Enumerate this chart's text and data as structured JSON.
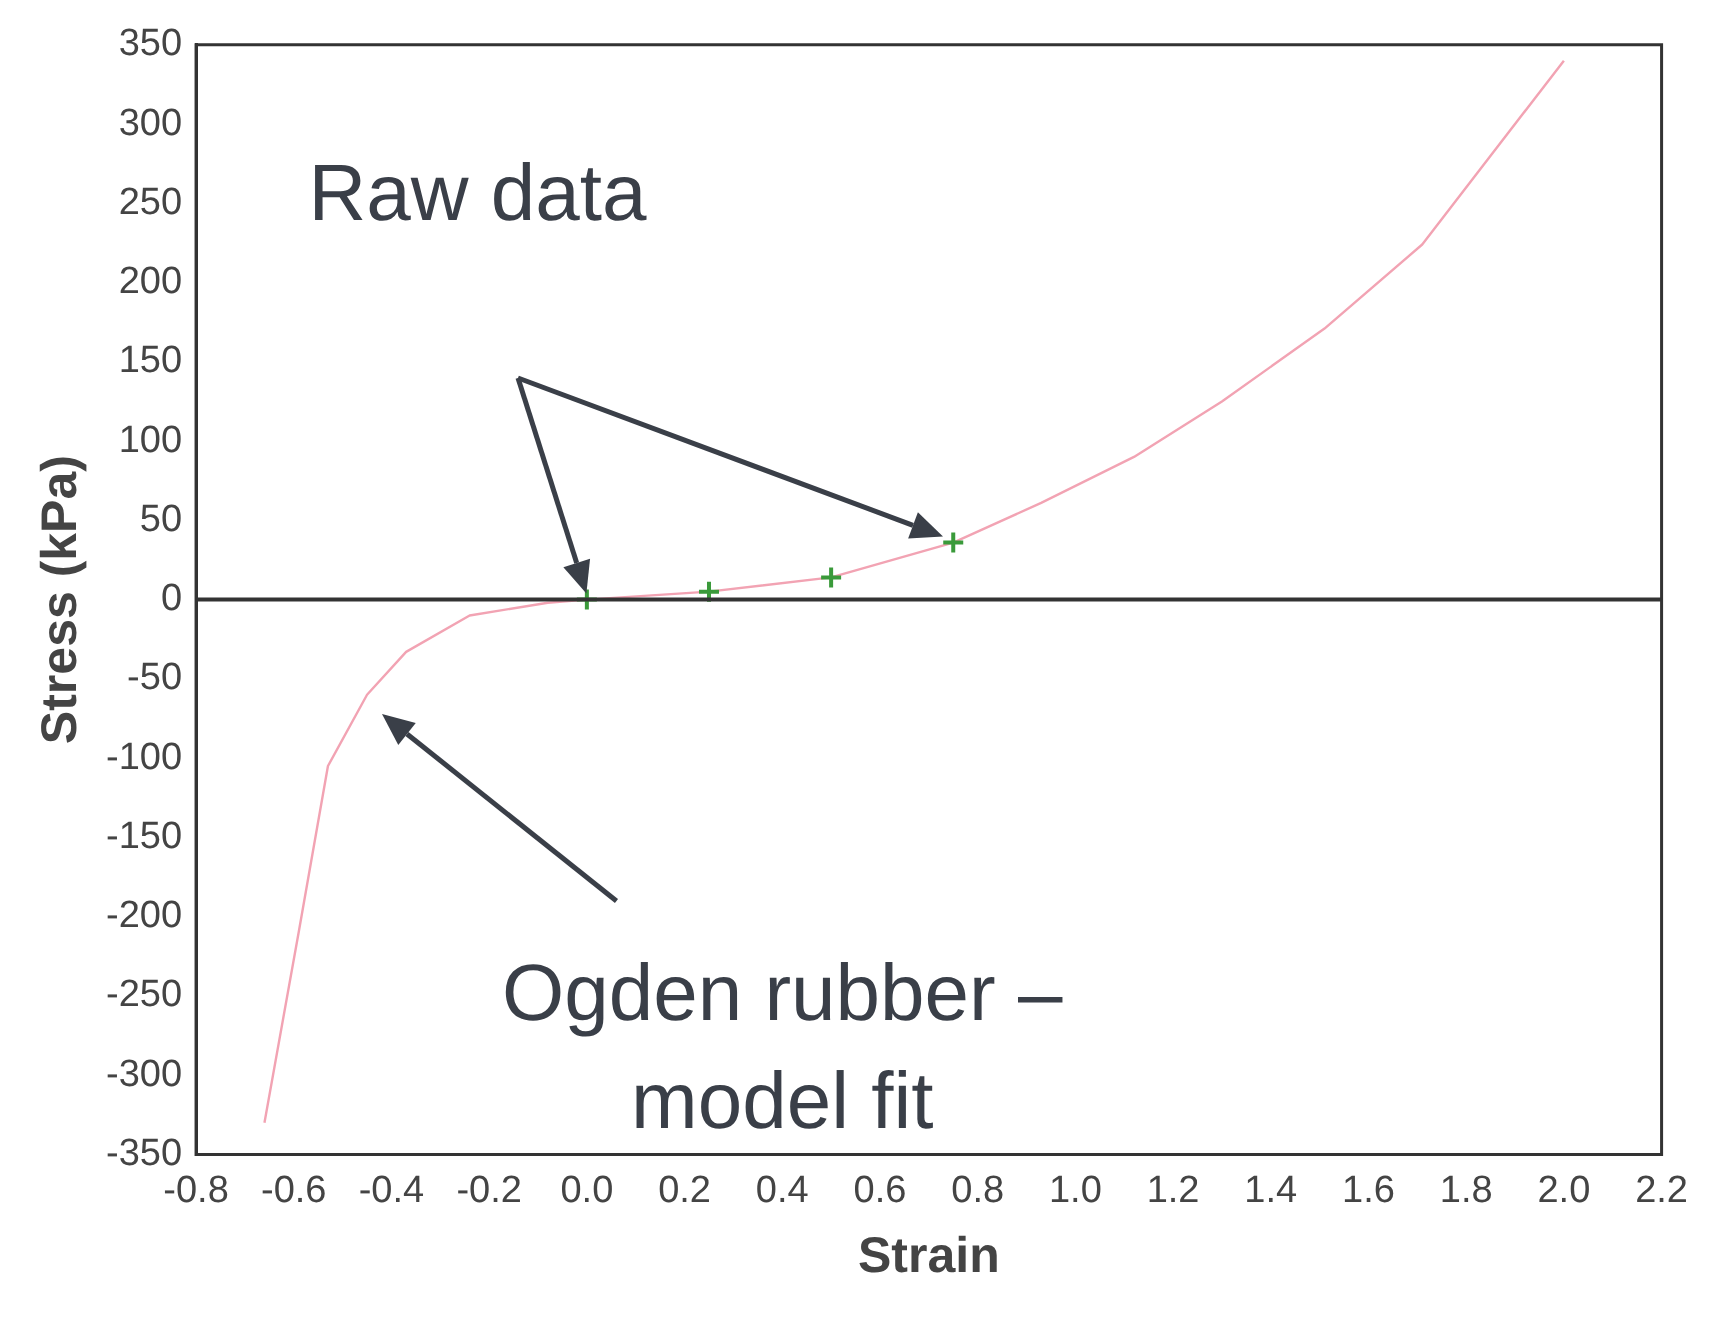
{
  "chart_data": {
    "type": "scatter",
    "xlabel": "Strain",
    "ylabel": "Stress (kPa)",
    "annotations": [
      "Raw data",
      "Ogden rubber –\nmodel fit"
    ],
    "series": [
      {
        "type": "line",
        "color": "#f2a3b3",
        "marker": "none",
        "x": [
          -0.66,
          -0.59,
          -0.53,
          -0.45,
          -0.37,
          -0.24,
          -0.08,
          0,
          0.25,
          0.5,
          0.75,
          0.93,
          1.12,
          1.3,
          1.51,
          1.71,
          2.0
        ],
        "values": [
          -330,
          -210,
          -105,
          -60,
          -33,
          -10,
          -2,
          0,
          5,
          14,
          36,
          61,
          90,
          125,
          171,
          224,
          340
        ]
      },
      {
        "type": "scatter",
        "color": "#3a9a3a",
        "marker": "cross",
        "x": [
          0,
          0.25,
          0.5,
          0.75
        ],
        "values": [
          0,
          5,
          14,
          36
        ]
      }
    ],
    "xlim": [
      -0.8,
      2.2
    ],
    "xticks": [
      -0.8,
      -0.6,
      -0.4,
      -0.2,
      {
        "value": 0,
        "label": "0.0"
      },
      0.2,
      0.4,
      0.6,
      0.8,
      {
        "value": 1,
        "label": "1.0"
      },
      1.2,
      1.4,
      1.6,
      1.8,
      {
        "value": 2,
        "label": "2.0"
      },
      2.2
    ],
    "ylim": [
      -350,
      350
    ],
    "yticks": [
      -350,
      -300,
      -250,
      -200,
      -150,
      -100,
      -50,
      0,
      50,
      100,
      150,
      200,
      250,
      300,
      350
    ],
    "grid": false,
    "legend": false,
    "ref_lines": [
      {
        "axis": "y",
        "value": 0,
        "color": "#333333"
      }
    ]
  }
}
